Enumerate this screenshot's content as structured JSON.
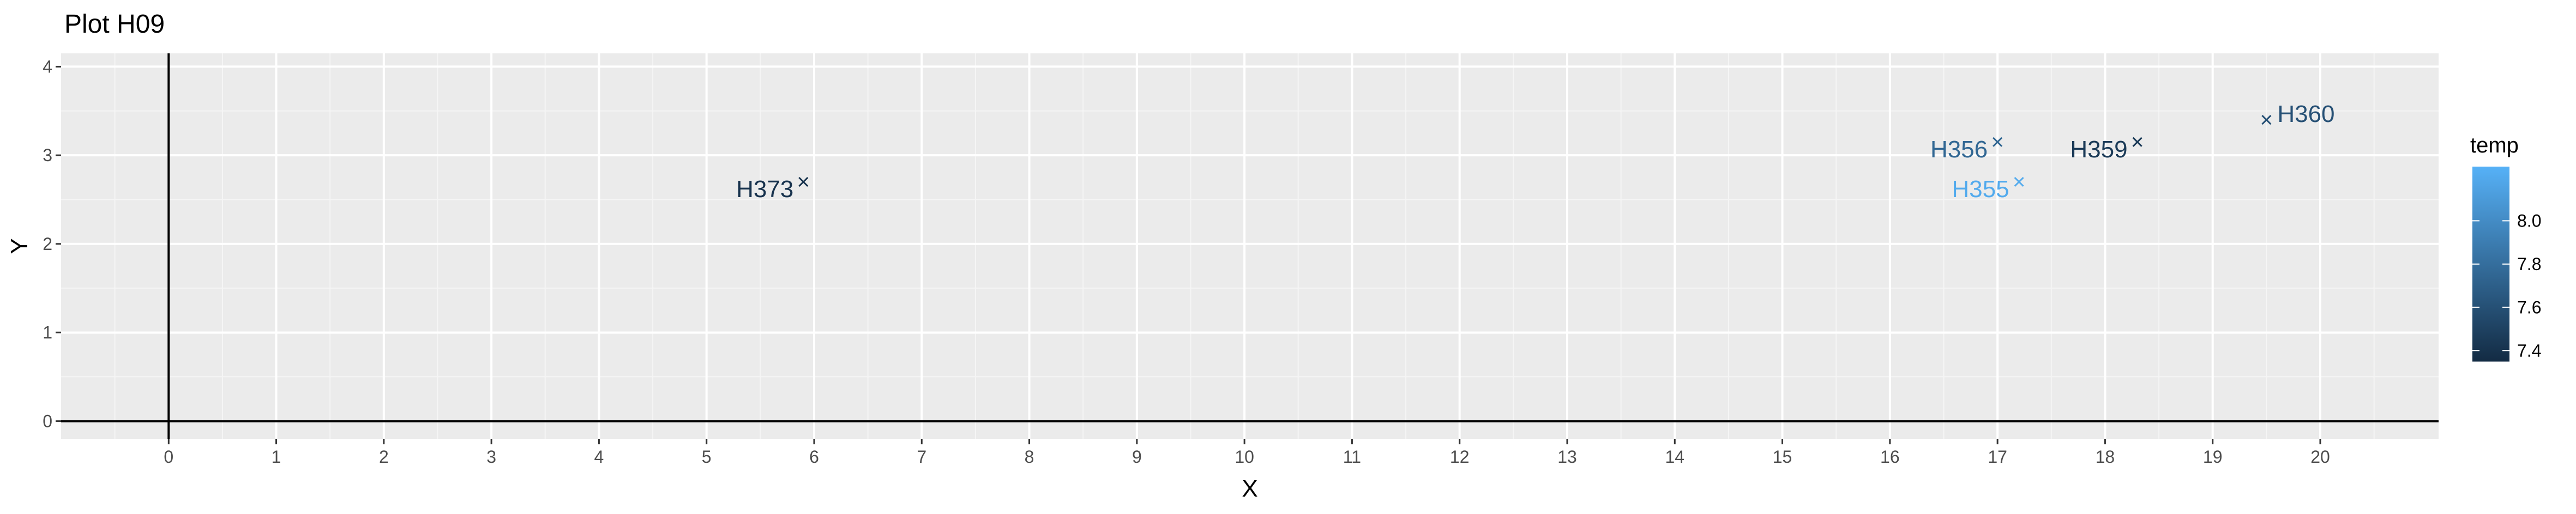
{
  "chart_data": {
    "type": "scatter",
    "title": "Plot H09",
    "xlabel": "X",
    "ylabel": "Y",
    "xlim": [
      -1.0,
      21.1
    ],
    "ylim": [
      -0.2,
      4.15
    ],
    "x_ticks": [
      "0",
      "1",
      "2",
      "3",
      "4",
      "5",
      "6",
      "7",
      "8",
      "9",
      "10",
      "11",
      "12",
      "13",
      "14",
      "15",
      "16",
      "17",
      "18",
      "19",
      "20"
    ],
    "y_ticks": [
      "0",
      "1",
      "2",
      "3",
      "4"
    ],
    "grid": true,
    "legend": {
      "title": "temp",
      "placement": "right",
      "min": 7.35,
      "max": 8.25,
      "ticks": [
        "7.4",
        "7.6",
        "7.8",
        "8.0"
      ],
      "tick_values": [
        7.4,
        7.6,
        7.8,
        8.0
      ],
      "low_color": "#132b43",
      "high_color": "#56b1f7"
    },
    "points": [
      {
        "label": "H373",
        "x": 5.9,
        "y": 2.7,
        "temp": 7.4
      },
      {
        "label": "H356",
        "x": 17.0,
        "y": 3.15,
        "temp": 7.75
      },
      {
        "label": "H355",
        "x": 17.2,
        "y": 2.7,
        "temp": 8.2
      },
      {
        "label": "H359",
        "x": 18.3,
        "y": 3.15,
        "temp": 7.45
      },
      {
        "label": "H360",
        "x": 19.5,
        "y": 3.4,
        "temp": 7.6
      }
    ]
  }
}
